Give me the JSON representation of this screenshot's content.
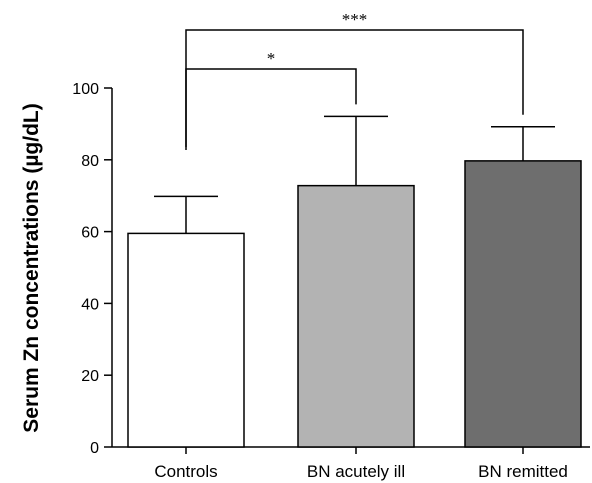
{
  "chart_data": {
    "type": "bar",
    "title": "",
    "xlabel": "",
    "ylabel": "Serum Zn concentrations (µg/dL)",
    "ylim": [
      0,
      100
    ],
    "yticks": [
      0,
      20,
      40,
      60,
      80,
      100
    ],
    "categories": [
      "Controls",
      "BN acutely ill",
      "BN remitted"
    ],
    "values": [
      59.5,
      72.8,
      79.7
    ],
    "error_upper": [
      69.8,
      92.1,
      89.2
    ],
    "bar_colors": [
      "#ffffff",
      "#b3b3b3",
      "#6e6e6e"
    ],
    "significance": [
      {
        "from": 0,
        "to": 1,
        "label": "*"
      },
      {
        "from": 0,
        "to": 2,
        "label": "***"
      }
    ],
    "grid": false,
    "legend": "none"
  }
}
